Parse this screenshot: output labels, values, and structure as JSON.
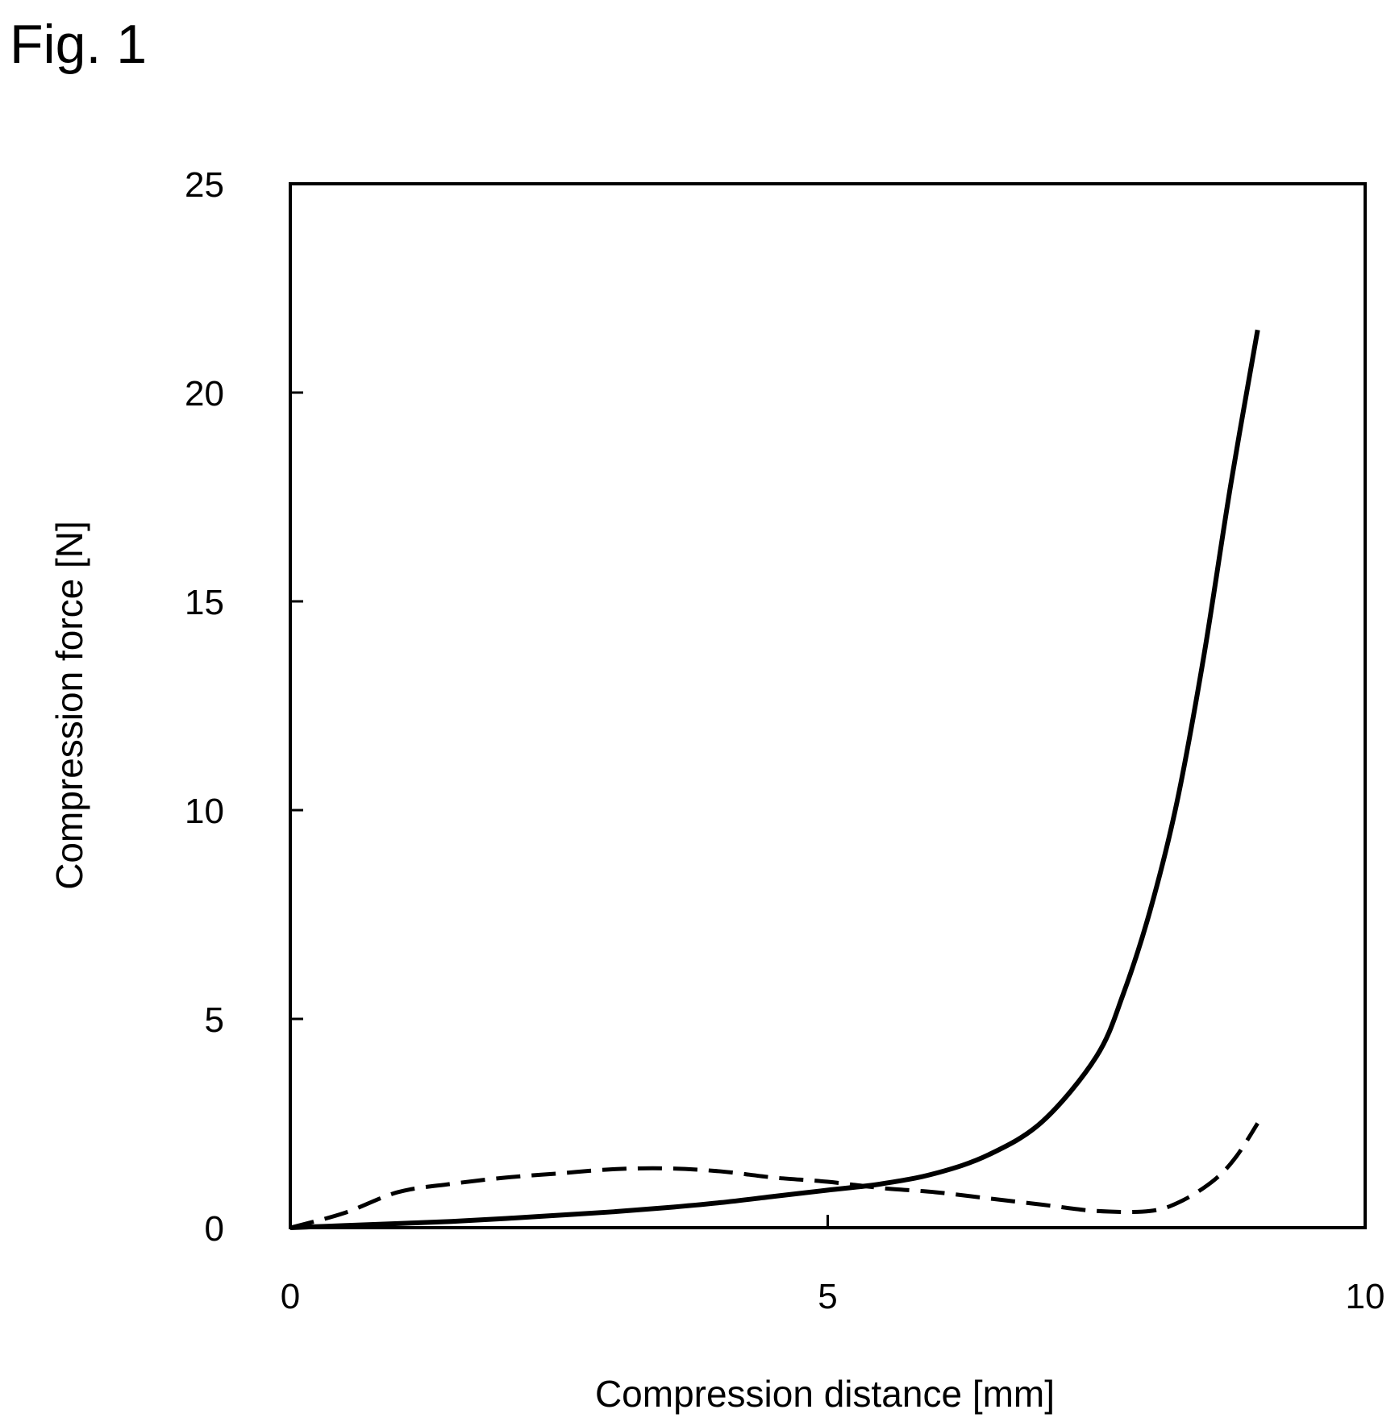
{
  "figure_label": "Fig. 1",
  "chart_data": {
    "type": "line",
    "xlabel": "Compression distance [mm]",
    "ylabel": "Compression force [N]",
    "xlim": [
      0,
      10
    ],
    "ylim": [
      0,
      25
    ],
    "xticks": [
      0,
      5,
      10
    ],
    "yticks": [
      0,
      5,
      10,
      15,
      20,
      25
    ],
    "grid": false,
    "legend": "none",
    "series": [
      {
        "style": "solid",
        "color": "#000000",
        "x": [
          0,
          0.5,
          1,
          1.5,
          2,
          2.5,
          3,
          3.5,
          4,
          4.5,
          5,
          5.5,
          6,
          6.5,
          7,
          7.5,
          7.75,
          8,
          8.25,
          8.5,
          8.75,
          9.0
        ],
        "y": [
          0,
          0.05,
          0.1,
          0.15,
          0.22,
          0.3,
          0.38,
          0.48,
          0.6,
          0.75,
          0.9,
          1.05,
          1.3,
          1.75,
          2.55,
          4.1,
          5.6,
          7.6,
          10.2,
          13.7,
          17.8,
          21.5
        ]
      },
      {
        "style": "dashed",
        "color": "#000000",
        "x": [
          0,
          0.5,
          1,
          1.5,
          2,
          2.5,
          3,
          3.5,
          4,
          4.5,
          5,
          5.5,
          6,
          6.5,
          7,
          7.5,
          8,
          8.3,
          8.6,
          8.8,
          9.0
        ],
        "y": [
          0,
          0.35,
          0.85,
          1.05,
          1.2,
          1.3,
          1.4,
          1.42,
          1.35,
          1.2,
          1.1,
          0.95,
          0.85,
          0.7,
          0.55,
          0.4,
          0.4,
          0.65,
          1.15,
          1.7,
          2.5
        ]
      }
    ]
  }
}
